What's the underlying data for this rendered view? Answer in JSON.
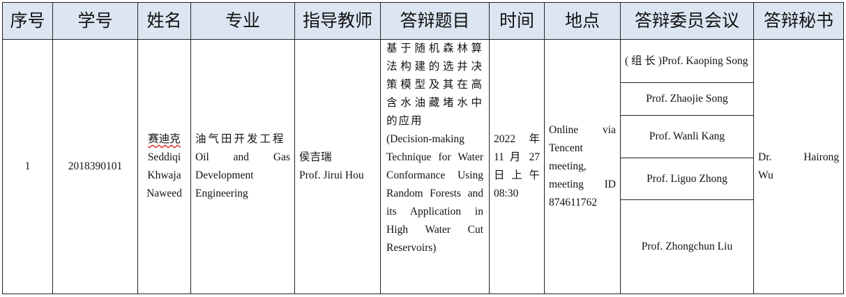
{
  "headers": [
    "序号",
    "学号",
    "姓名",
    "专业",
    "指导教师",
    "答辩题目",
    "时间",
    "地点",
    "答辩委员会议",
    "答辩秘书"
  ],
  "row": {
    "index": "1",
    "student_id": "2018390101",
    "name_cn": "赛迪克",
    "name_en": "Seddiqi Khwaja Naweed",
    "major_cn": "油气田开发工程",
    "major_en": "Oil and Gas Development Engineering",
    "advisor_cn": "侯吉瑞",
    "advisor_en": "Prof. Jirui Hou",
    "topic_cn": "基于随机森林算法构建的选井决策模型及其在高含水油藏堵水中的应用",
    "topic_en": "(Decision-making Technique for Water Conformance Using Random Forests and its Application in High Water Cut Reservoirs)",
    "time": "2022 年 11 月 27 日上午 08:30",
    "location": "Online via Tencent meeting, meeting ID 874611762",
    "committee": [
      "( 组 长 )Prof. Kaoping Song",
      "Prof. Zhaojie Song",
      "Prof. Wanli Kang",
      "Prof. Liguo Zhong",
      "Prof. Zhongchun Liu"
    ],
    "secretary": "Dr. Hairong Wu"
  },
  "colors": {
    "header_bg": "#dce6f2",
    "border": "#222222"
  }
}
